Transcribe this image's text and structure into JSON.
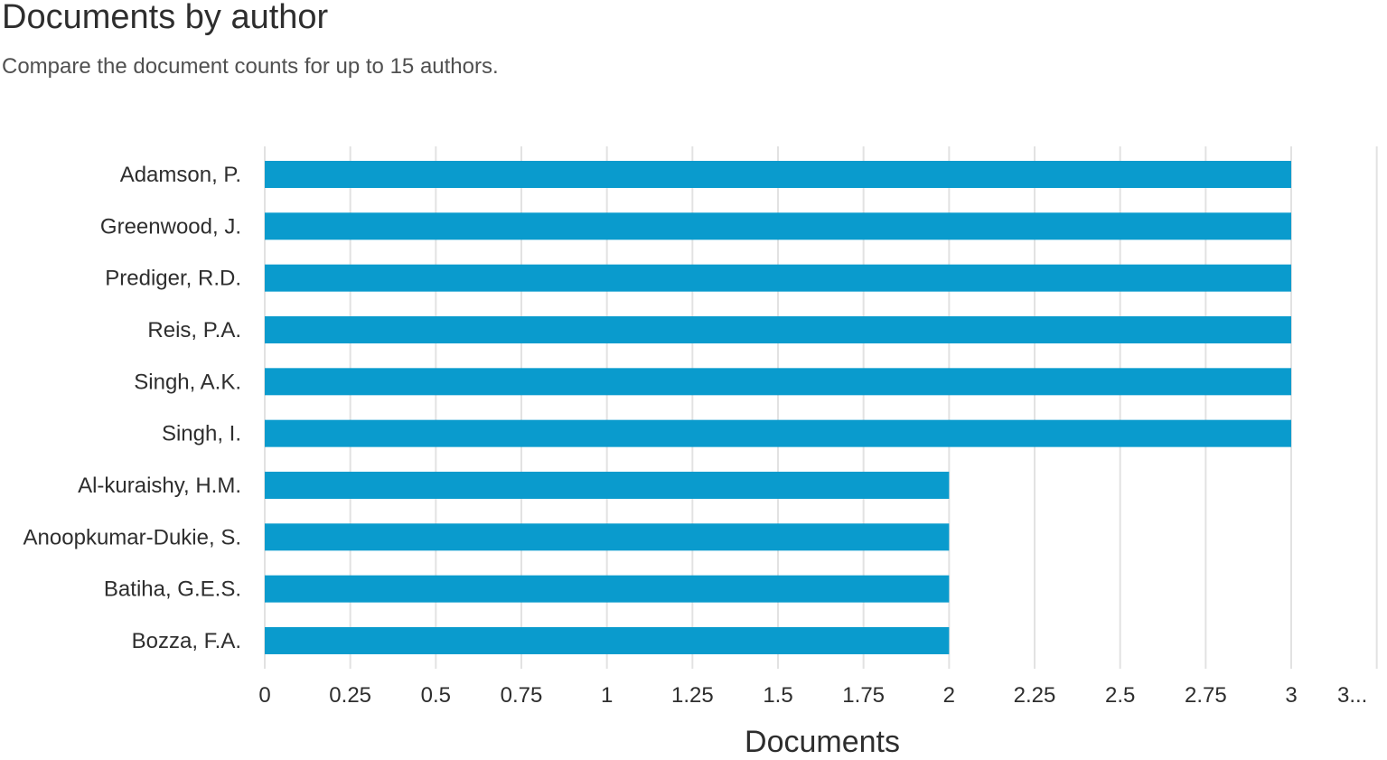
{
  "header": {
    "title": "Documents by author",
    "subtitle": "Compare the document counts for up to 15 authors."
  },
  "colors": {
    "bar": "#0a9bcd",
    "grid": "#e2e2e2",
    "text": "#2e2e2e"
  },
  "chart_data": {
    "type": "bar",
    "orientation": "horizontal",
    "title": "Documents by author",
    "subtitle": "Compare the document counts for up to 15 authors.",
    "xlabel": "Documents",
    "ylabel": "",
    "categories": [
      "Adamson, P.",
      "Greenwood, J.",
      "Prediger, R.D.",
      "Reis, P.A.",
      "Singh, A.K.",
      "Singh, I.",
      "Al-kuraishy, H.M.",
      "Anoopkumar-Dukie, S.",
      "Batiha, G.E.S.",
      "Bozza, F.A."
    ],
    "values": [
      3,
      3,
      3,
      3,
      3,
      3,
      2,
      2,
      2,
      2
    ],
    "xlim": [
      0,
      3.25
    ],
    "xticks": [
      "0",
      "0.25",
      "0.5",
      "0.75",
      "1",
      "1.25",
      "1.5",
      "1.75",
      "2",
      "2.25",
      "2.5",
      "2.75",
      "3",
      "3..."
    ],
    "grid": true,
    "legend": "none"
  }
}
